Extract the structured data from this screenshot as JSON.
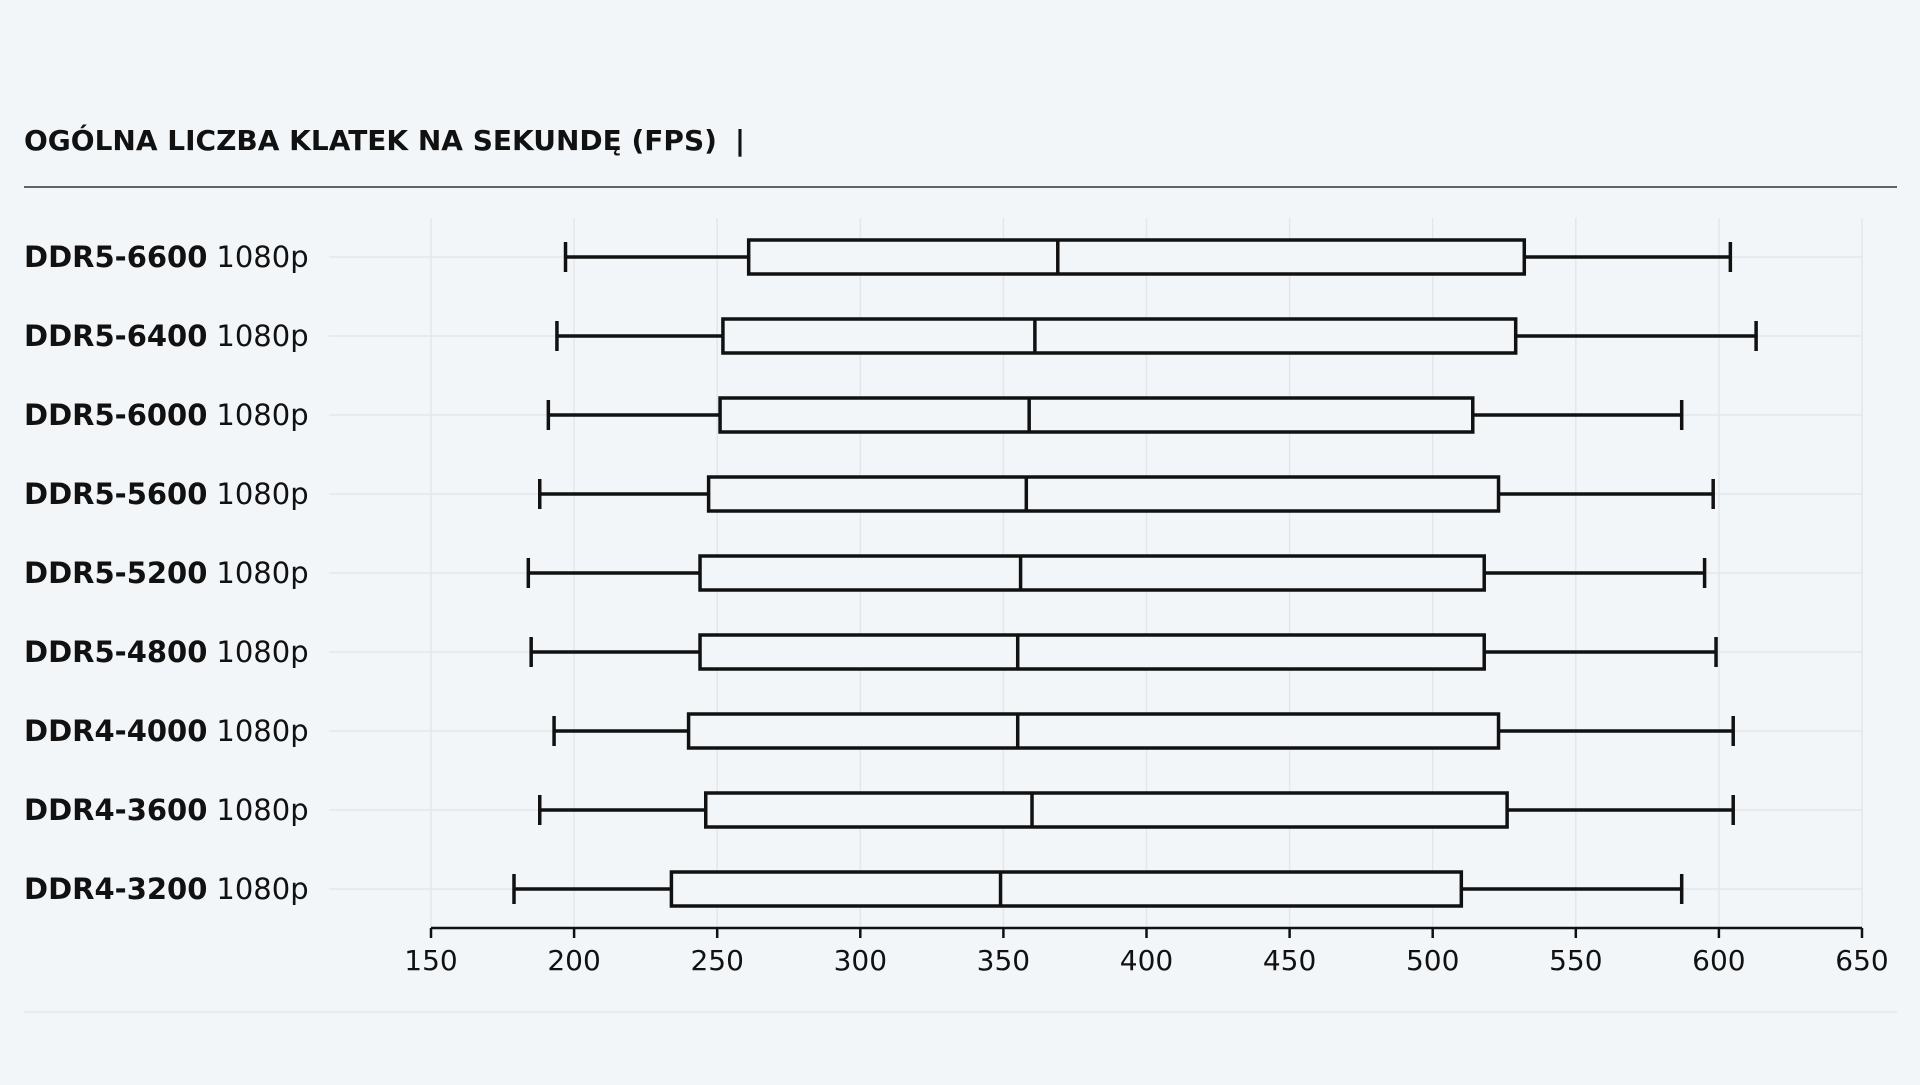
{
  "title": "OGÓLNA LICZBA KLATEK NA SEKUNDĘ (FPS)",
  "title_suffix": "|",
  "colors": {
    "background": "#f3f6f9",
    "box_fill": "#f3f6f9",
    "stroke": "#111111",
    "grid": "#e3e7ec",
    "rule": "#333333"
  },
  "chart_data": {
    "type": "boxplot",
    "orientation": "horizontal",
    "title": "OGÓLNA LICZBA KLATEK NA SEKUNDĘ (FPS)",
    "xlim": [
      150,
      650
    ],
    "xticks": [
      150,
      200,
      250,
      300,
      350,
      400,
      450,
      500,
      550,
      600,
      650
    ],
    "grid": true,
    "categories": [
      {
        "name": "DDR5-6600",
        "suffix": "1080p",
        "min": 197,
        "q1": 261,
        "median": 369,
        "q3": 532,
        "max": 604
      },
      {
        "name": "DDR5-6400",
        "suffix": "1080p",
        "min": 194,
        "q1": 252,
        "median": 361,
        "q3": 529,
        "max": 613
      },
      {
        "name": "DDR5-6000",
        "suffix": "1080p",
        "min": 191,
        "q1": 251,
        "median": 359,
        "q3": 514,
        "max": 587
      },
      {
        "name": "DDR5-5600",
        "suffix": "1080p",
        "min": 188,
        "q1": 247,
        "median": 358,
        "q3": 523,
        "max": 598
      },
      {
        "name": "DDR5-5200",
        "suffix": "1080p",
        "min": 184,
        "q1": 244,
        "median": 356,
        "q3": 518,
        "max": 595
      },
      {
        "name": "DDR5-4800",
        "suffix": "1080p",
        "min": 185,
        "q1": 244,
        "median": 355,
        "q3": 518,
        "max": 599
      },
      {
        "name": "DDR4-4000",
        "suffix": "1080p",
        "min": 193,
        "q1": 240,
        "median": 355,
        "q3": 523,
        "max": 605
      },
      {
        "name": "DDR4-3600",
        "suffix": "1080p",
        "min": 188,
        "q1": 246,
        "median": 360,
        "q3": 526,
        "max": 605
      },
      {
        "name": "DDR4-3200",
        "suffix": "1080p",
        "min": 179,
        "q1": 234,
        "median": 349,
        "q3": 510,
        "max": 587
      }
    ]
  }
}
